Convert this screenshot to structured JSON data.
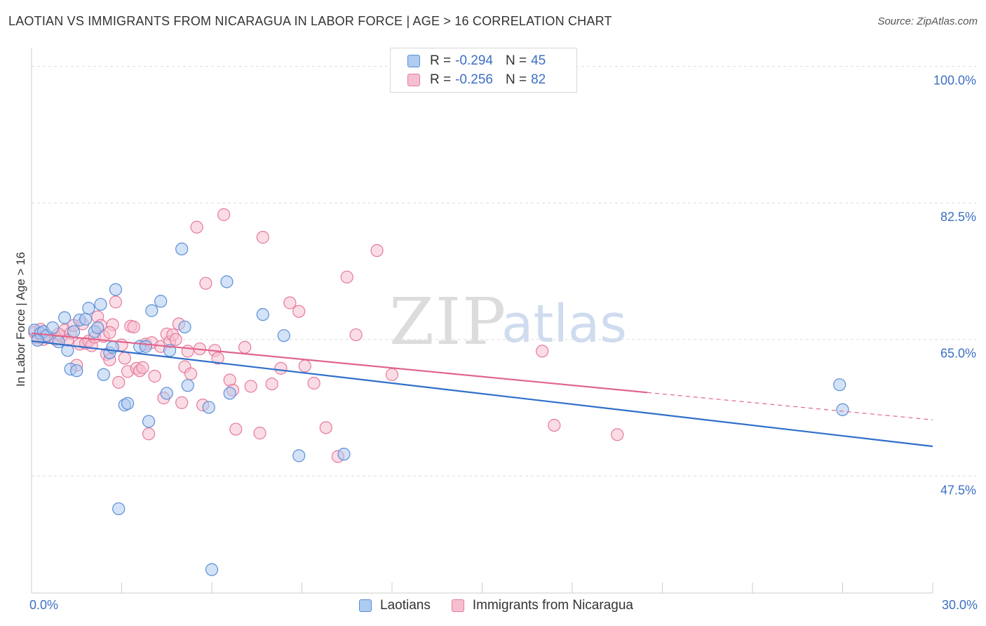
{
  "header": {
    "title": "LAOTIAN VS IMMIGRANTS FROM NICARAGUA IN LABOR FORCE | AGE > 16 CORRELATION CHART",
    "source": "Source: ZipAtlas.com"
  },
  "watermark": {
    "zip": "ZIP",
    "atlas": "atlas"
  },
  "colors": {
    "blue_fill": "#aecbf0",
    "blue_stroke": "#5b8fd6",
    "blue_line": "#2f6fcb",
    "pink_fill": "#f6bfd0",
    "pink_stroke": "#e67a9c",
    "pink_line": "#e0648c",
    "grid": "#dddddd",
    "tick_text": "#3d6fc4"
  },
  "legend": {
    "series": [
      {
        "r_label": "R = ",
        "r_value": "-0.294",
        "n_label": "N = ",
        "n_value": "45"
      },
      {
        "r_label": "R = ",
        "r_value": "-0.256",
        "n_label": "N = ",
        "n_value": "82"
      }
    ],
    "bottom": [
      "Laotians",
      "Immigrants from Nicaragua"
    ]
  },
  "chart_data": {
    "type": "scatter",
    "title": "LAOTIAN VS IMMIGRANTS FROM NICARAGUA IN LABOR FORCE | AGE > 16 CORRELATION CHART",
    "xlabel": "",
    "ylabel": "In Labor Force | Age > 16",
    "xlim": [
      0,
      30
    ],
    "ylim": [
      32.5,
      101.5
    ],
    "x_tick_labels": [
      "0.0%",
      "30.0%"
    ],
    "y_ticks": [
      100,
      82.5,
      65,
      47.5
    ],
    "y_tick_labels": [
      "100.0%",
      "82.5%",
      "65.0%",
      "47.5%"
    ],
    "grid": true,
    "legend_position": "top-center",
    "series": [
      {
        "name": "Laotians",
        "r": -0.294,
        "n": 45,
        "trend": {
          "x0": 0,
          "y0": 64.8,
          "x1": 30,
          "y1": 51.3
        },
        "points": [
          [
            0.1,
            66.2
          ],
          [
            0.3,
            65.8
          ],
          [
            0.4,
            66.0
          ],
          [
            0.5,
            65.5
          ],
          [
            0.7,
            66.5
          ],
          [
            0.9,
            64.7
          ],
          [
            1.1,
            67.8
          ],
          [
            1.2,
            63.6
          ],
          [
            1.3,
            61.2
          ],
          [
            1.4,
            66.0
          ],
          [
            1.5,
            61.0
          ],
          [
            1.6,
            67.5
          ],
          [
            1.8,
            67.6
          ],
          [
            1.9,
            69.0
          ],
          [
            2.1,
            66.0
          ],
          [
            2.2,
            66.5
          ],
          [
            2.3,
            69.5
          ],
          [
            2.4,
            60.5
          ],
          [
            2.6,
            63.3
          ],
          [
            2.7,
            64.0
          ],
          [
            2.8,
            71.4
          ],
          [
            2.9,
            43.3
          ],
          [
            3.1,
            56.6
          ],
          [
            3.2,
            56.8
          ],
          [
            3.6,
            64.1
          ],
          [
            3.8,
            64.1
          ],
          [
            3.9,
            54.5
          ],
          [
            4.0,
            68.7
          ],
          [
            4.3,
            69.9
          ],
          [
            4.5,
            58.1
          ],
          [
            4.6,
            63.6
          ],
          [
            5.0,
            76.6
          ],
          [
            5.1,
            66.6
          ],
          [
            5.2,
            59.1
          ],
          [
            5.9,
            56.3
          ],
          [
            6.5,
            72.4
          ],
          [
            6.6,
            58.1
          ],
          [
            7.7,
            68.2
          ],
          [
            8.4,
            65.5
          ],
          [
            8.9,
            50.1
          ],
          [
            10.4,
            50.3
          ],
          [
            27.0,
            56.0
          ],
          [
            26.9,
            59.2
          ],
          [
            0.2,
            64.9
          ],
          [
            6.0,
            35.5
          ]
        ]
      },
      {
        "name": "Immigrants from Nicaragua",
        "r": -0.256,
        "n": 82,
        "trend": {
          "x0": 0,
          "y0": 65.8,
          "x1": 20.5,
          "y1": 58.2,
          "dash_to_x": 30,
          "dash_to_y": 54.7
        },
        "points": [
          [
            0.1,
            65.9
          ],
          [
            0.2,
            65.2
          ],
          [
            0.3,
            65.6
          ],
          [
            0.4,
            65.0
          ],
          [
            0.5,
            65.5
          ],
          [
            0.6,
            65.3
          ],
          [
            0.8,
            65.0
          ],
          [
            1.0,
            65.4
          ],
          [
            1.1,
            66.2
          ],
          [
            1.3,
            65.8
          ],
          [
            1.4,
            66.8
          ],
          [
            1.5,
            61.7
          ],
          [
            1.6,
            64.4
          ],
          [
            1.7,
            67.0
          ],
          [
            1.8,
            64.5
          ],
          [
            1.9,
            64.8
          ],
          [
            2.0,
            64.2
          ],
          [
            2.1,
            65.3
          ],
          [
            2.2,
            67.9
          ],
          [
            2.3,
            66.8
          ],
          [
            2.4,
            65.4
          ],
          [
            2.5,
            63.1
          ],
          [
            2.6,
            62.4
          ],
          [
            2.7,
            66.9
          ],
          [
            2.8,
            69.8
          ],
          [
            2.9,
            59.5
          ],
          [
            3.0,
            64.3
          ],
          [
            3.1,
            62.6
          ],
          [
            3.2,
            60.9
          ],
          [
            3.3,
            66.7
          ],
          [
            3.4,
            66.6
          ],
          [
            3.5,
            61.3
          ],
          [
            3.6,
            61.0
          ],
          [
            3.7,
            61.4
          ],
          [
            3.8,
            64.4
          ],
          [
            3.9,
            52.9
          ],
          [
            4.0,
            64.6
          ],
          [
            4.1,
            60.3
          ],
          [
            4.3,
            64.1
          ],
          [
            4.4,
            57.5
          ],
          [
            4.5,
            65.7
          ],
          [
            4.6,
            64.7
          ],
          [
            4.7,
            65.6
          ],
          [
            4.8,
            65.0
          ],
          [
            4.9,
            67.0
          ],
          [
            5.0,
            56.9
          ],
          [
            5.1,
            61.5
          ],
          [
            5.2,
            63.5
          ],
          [
            5.3,
            60.6
          ],
          [
            5.5,
            79.4
          ],
          [
            5.6,
            63.8
          ],
          [
            5.7,
            56.6
          ],
          [
            5.8,
            72.2
          ],
          [
            6.1,
            63.6
          ],
          [
            6.2,
            62.6
          ],
          [
            6.4,
            81.0
          ],
          [
            6.6,
            59.8
          ],
          [
            6.7,
            58.5
          ],
          [
            6.8,
            53.5
          ],
          [
            7.1,
            64.0
          ],
          [
            7.3,
            59.0
          ],
          [
            7.6,
            53.0
          ],
          [
            7.7,
            78.1
          ],
          [
            8.0,
            59.3
          ],
          [
            8.3,
            61.3
          ],
          [
            8.6,
            69.7
          ],
          [
            8.9,
            68.6
          ],
          [
            9.1,
            61.6
          ],
          [
            9.4,
            59.4
          ],
          [
            9.8,
            53.7
          ],
          [
            10.2,
            50.0
          ],
          [
            10.5,
            73.0
          ],
          [
            10.8,
            65.6
          ],
          [
            11.5,
            76.4
          ],
          [
            12.0,
            60.5
          ],
          [
            17.0,
            63.5
          ],
          [
            17.4,
            54.0
          ],
          [
            19.5,
            52.8
          ],
          [
            0.3,
            66.3
          ],
          [
            0.9,
            65.7
          ],
          [
            2.6,
            65.9
          ],
          [
            1.2,
            64.9
          ]
        ]
      }
    ]
  }
}
